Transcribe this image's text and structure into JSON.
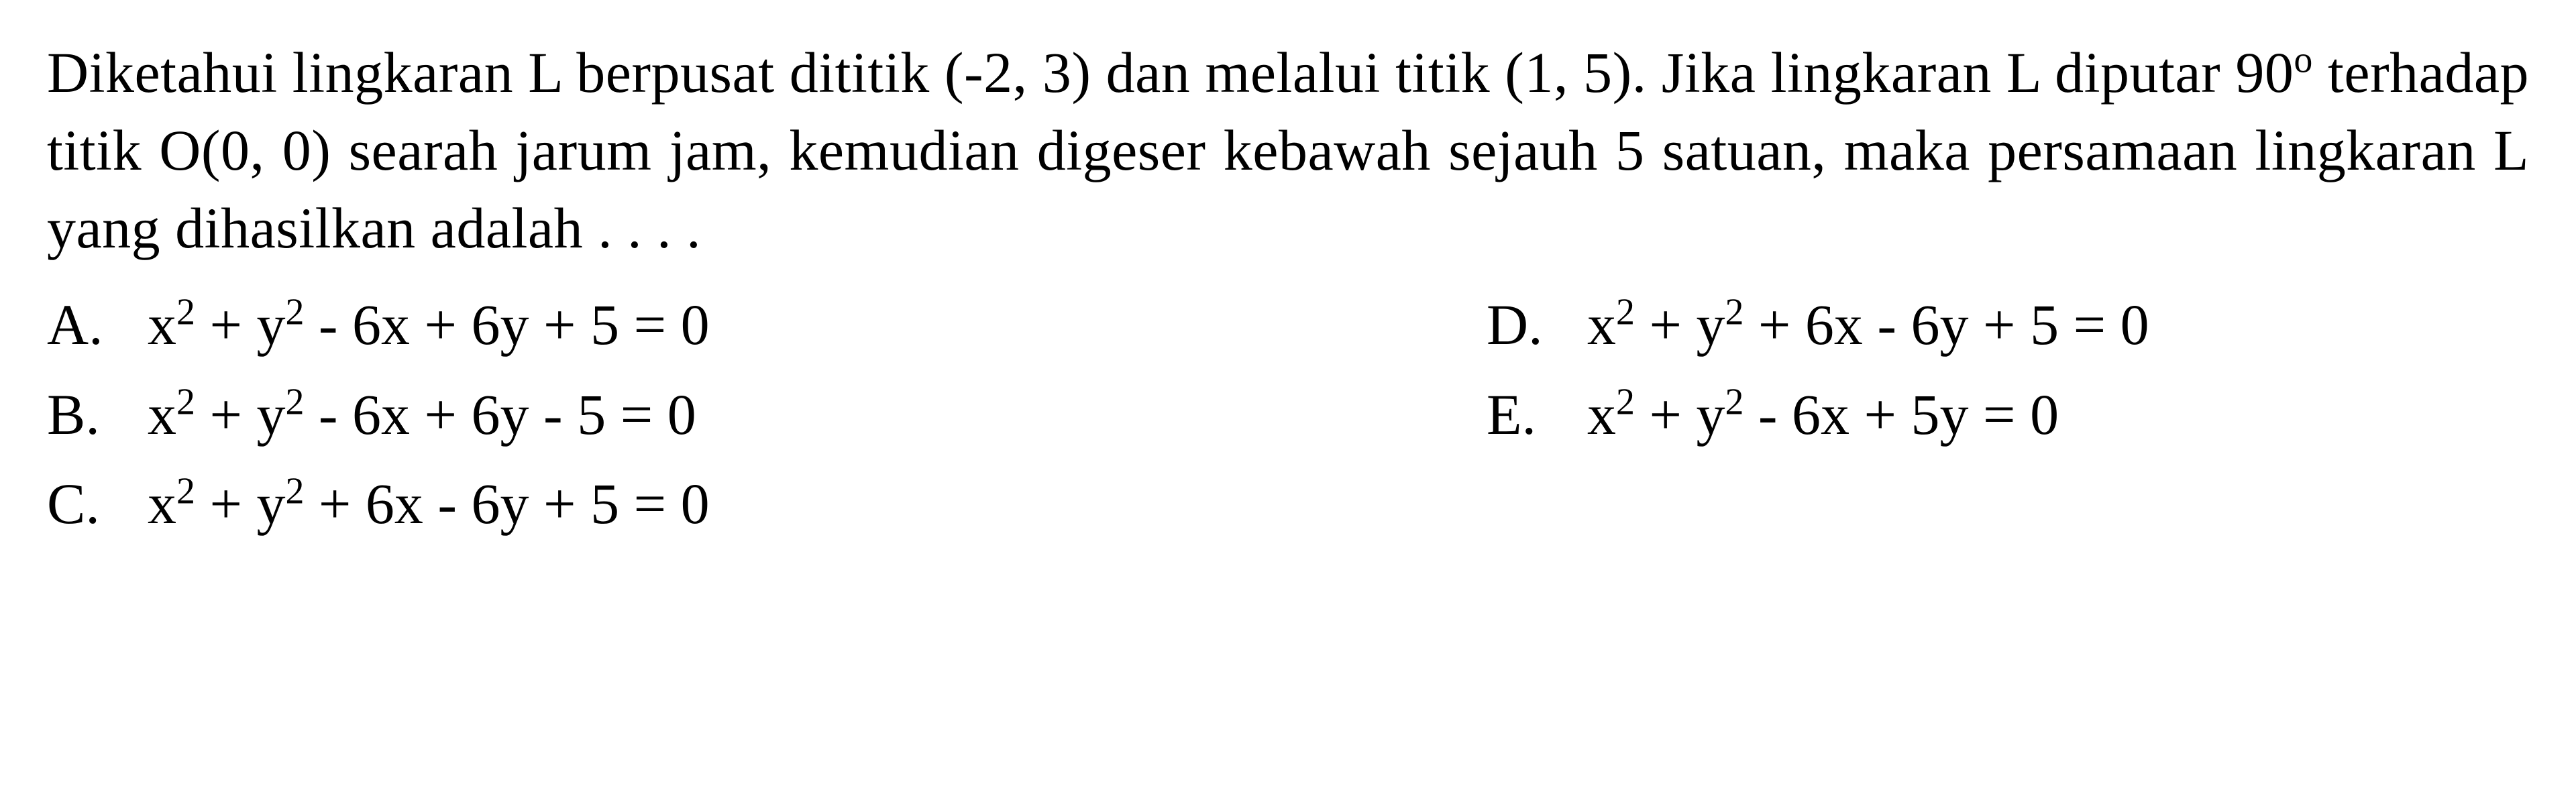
{
  "question": {
    "line1_part1": "Diketahui lingkaran L berpusat dititik (-2, 3) dan melalui titik (1, 5). Jika lingkaran L diputar 90",
    "degree": "o",
    "line1_part2": " terhadap titik O(0, 0) searah jarum jam, kemudian digeser kebawah sejauh 5 satuan, maka persamaan lingkaran L yang dihasilkan adalah . . . ."
  },
  "options": {
    "A": {
      "letter": "A.",
      "pre": "x",
      "sup1": "2",
      "mid1": " + y",
      "sup2": "2",
      "rest": " - 6x + 6y + 5 = 0"
    },
    "B": {
      "letter": "B.",
      "pre": "x",
      "sup1": "2",
      "mid1": " + y",
      "sup2": "2",
      "rest": " - 6x + 6y - 5 = 0"
    },
    "C": {
      "letter": "C.",
      "pre": "x",
      "sup1": "2",
      "mid1": " + y",
      "sup2": "2",
      "rest": " + 6x - 6y + 5 = 0"
    },
    "D": {
      "letter": "D.",
      "pre": "x",
      "sup1": "2",
      "mid1": " + y",
      "sup2": "2",
      "rest": " + 6x - 6y + 5 = 0"
    },
    "E": {
      "letter": "E.",
      "pre": "x",
      "sup1": "2",
      "mid1": " + y",
      "sup2": "2",
      "rest": " - 6x + 5y = 0"
    }
  },
  "style": {
    "font_size_pt": 64,
    "font_family": "Times New Roman",
    "text_color": "#000000",
    "background_color": "#ffffff"
  }
}
